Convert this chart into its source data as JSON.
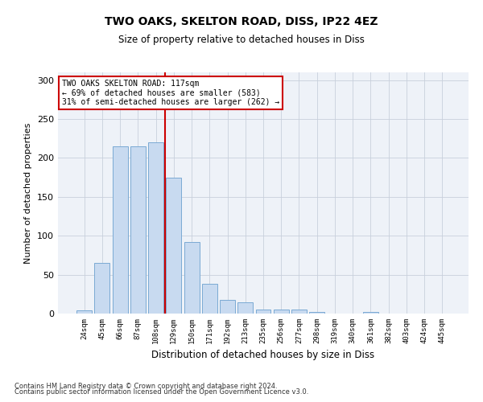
{
  "title1": "TWO OAKS, SKELTON ROAD, DISS, IP22 4EZ",
  "title2": "Size of property relative to detached houses in Diss",
  "xlabel": "Distribution of detached houses by size in Diss",
  "ylabel": "Number of detached properties",
  "categories": [
    "24sqm",
    "45sqm",
    "66sqm",
    "87sqm",
    "108sqm",
    "129sqm",
    "150sqm",
    "171sqm",
    "192sqm",
    "213sqm",
    "235sqm",
    "256sqm",
    "277sqm",
    "298sqm",
    "319sqm",
    "340sqm",
    "361sqm",
    "382sqm",
    "403sqm",
    "424sqm",
    "445sqm"
  ],
  "values": [
    4,
    65,
    215,
    215,
    220,
    175,
    92,
    38,
    18,
    14,
    5,
    5,
    5,
    2,
    0,
    0,
    2,
    0,
    0,
    0,
    0
  ],
  "bar_color": "#c8daf0",
  "bar_edge_color": "#7baad4",
  "vline_color": "#cc0000",
  "vline_x": 4.5,
  "annotation_text": "TWO OAKS SKELTON ROAD: 117sqm\n← 69% of detached houses are smaller (583)\n31% of semi-detached houses are larger (262) →",
  "annotation_box_color": "#ffffff",
  "annotation_box_edge": "#cc0000",
  "bg_color": "#eef2f8",
  "grid_color": "#c8d0dc",
  "footnote1": "Contains HM Land Registry data © Crown copyright and database right 2024.",
  "footnote2": "Contains public sector information licensed under the Open Government Licence v3.0.",
  "ylim": [
    0,
    310
  ],
  "yticks": [
    0,
    50,
    100,
    150,
    200,
    250,
    300
  ]
}
